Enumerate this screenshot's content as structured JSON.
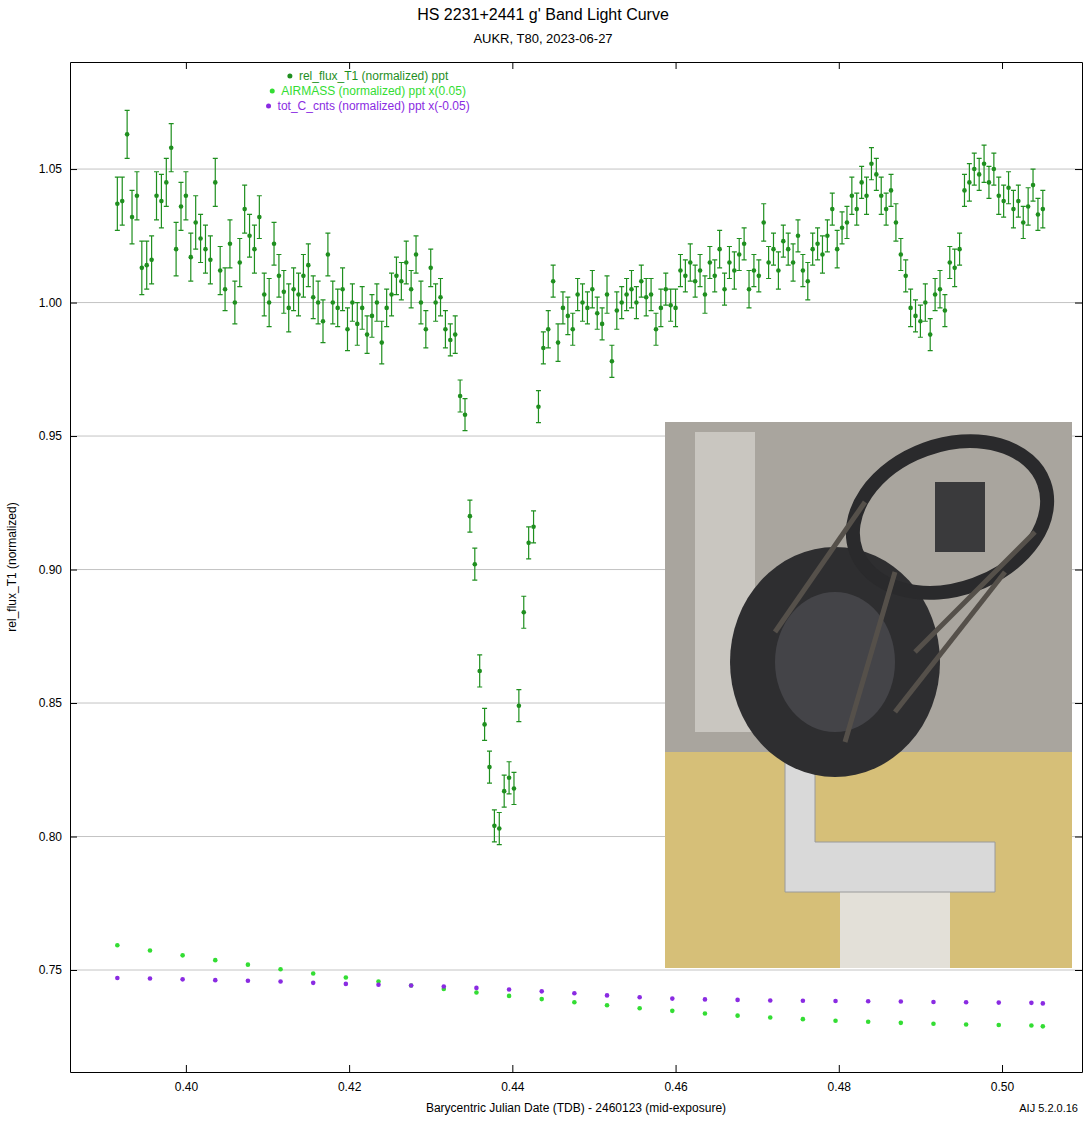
{
  "chart_data": {
    "type": "scatter",
    "title": "HS 2231+2441 g' Band Light Curve",
    "subtitle": "AUKR, T80, 2023-06-27",
    "x_label": "Barycentric Julian Date (TDB) - 2460123 (mid-exposure)",
    "y_label": "rel_flux_T1 (normalized)",
    "footnote": "AIJ 5.2.0.16",
    "xlim": [
      0.3858,
      0.5098
    ],
    "xticks": [
      {
        "value": 0.4,
        "label": "0.40"
      },
      0.42,
      0.44,
      0.46,
      0.48,
      {
        "value": 0.5,
        "label": "0.50"
      }
    ],
    "ylim": [
      0.7118,
      1.0901
    ],
    "yticks": [
      0.75,
      {
        "value": 0.8,
        "label": "0.80"
      },
      0.85,
      {
        "value": 0.9,
        "label": "0.90"
      },
      0.95,
      {
        "value": 1.0,
        "label": "1.00"
      },
      1.05
    ],
    "grid": "y",
    "legend": "top",
    "series": [
      {
        "name": "rel_flux_T1 (normalized) ppt",
        "color": "#1f8f1f",
        "marker": "circle",
        "line_style": "none",
        "x": [
          0.3916,
          0.3922,
          0.3928,
          0.3934,
          0.394,
          0.3946,
          0.3952,
          0.3958,
          0.3964,
          0.397,
          0.3976,
          0.3982,
          0.3988,
          0.3994,
          0.4,
          0.4006,
          0.4012,
          0.4018,
          0.4024,
          0.403,
          0.4036,
          0.4042,
          0.4048,
          0.4054,
          0.406,
          0.4066,
          0.4072,
          0.4078,
          0.4084,
          0.409,
          0.4096,
          0.4102,
          0.4108,
          0.4114,
          0.412,
          0.4126,
          0.4132,
          0.4138,
          0.4144,
          0.415,
          0.4156,
          0.4162,
          0.4168,
          0.4174,
          0.418,
          0.4186,
          0.4192,
          0.4198,
          0.4204,
          0.421,
          0.4216,
          0.4222,
          0.4228,
          0.4234,
          0.424,
          0.4246,
          0.4252,
          0.4258,
          0.4264,
          0.427,
          0.4276,
          0.4282,
          0.4288,
          0.4294,
          0.43,
          0.4306,
          0.4312,
          0.4318,
          0.4324,
          0.433,
          0.4336,
          0.4342,
          0.4348,
          0.4354,
          0.436,
          0.4366,
          0.4372,
          0.4378,
          0.4384,
          0.439,
          0.4396,
          0.4402,
          0.4408,
          0.4414,
          0.442,
          0.4426,
          0.4432,
          0.4438,
          0.4444,
          0.445,
          0.4456,
          0.4462,
          0.4468,
          0.4474,
          0.448,
          0.4486,
          0.4492,
          0.4498,
          0.4504,
          0.451,
          0.4516,
          0.4522,
          0.4528,
          0.4534,
          0.454,
          0.4546,
          0.4552,
          0.4558,
          0.4564,
          0.457,
          0.4576,
          0.4582,
          0.4588,
          0.4594,
          0.46,
          0.4606,
          0.4612,
          0.4618,
          0.4624,
          0.463,
          0.4636,
          0.4642,
          0.4648,
          0.4654,
          0.466,
          0.4666,
          0.4672,
          0.4678,
          0.4684,
          0.469,
          0.4696,
          0.4702,
          0.4708,
          0.4714,
          0.472,
          0.4726,
          0.4732,
          0.4738,
          0.4744,
          0.475,
          0.4756,
          0.4762,
          0.4768,
          0.4774,
          0.478,
          0.4786,
          0.4792,
          0.4798,
          0.4804,
          0.481,
          0.4816,
          0.4822,
          0.4828,
          0.4834,
          0.484,
          0.4846,
          0.4852,
          0.4858,
          0.4864,
          0.487,
          0.4876,
          0.4882,
          0.4888,
          0.4894,
          0.49,
          0.4906,
          0.4912,
          0.4918,
          0.4924,
          0.493,
          0.4936,
          0.4942,
          0.4948,
          0.4954,
          0.496,
          0.4966,
          0.4972,
          0.4978,
          0.4984,
          0.499,
          0.4996,
          0.5002,
          0.5008,
          0.5014,
          0.502,
          0.5026,
          0.5032,
          0.5038,
          0.5044,
          0.505
        ],
        "values": [
          1.037,
          1.038,
          1.063,
          1.032,
          1.04,
          1.013,
          1.014,
          1.016,
          1.04,
          1.038,
          1.045,
          1.058,
          1.02,
          1.036,
          1.04,
          1.017,
          1.03,
          1.024,
          1.02,
          1.016,
          1.045,
          1.012,
          1.005,
          1.022,
          1.0,
          1.015,
          1.035,
          1.025,
          1.02,
          1.032,
          1.003,
          1.0,
          1.022,
          1.01,
          1.004,
          0.998,
          1.005,
          1.003,
          1.01,
          1.014,
          1.002,
          1.0,
          0.993,
          1.018,
          1.0,
          0.998,
          1.005,
          0.99,
          1.0,
          0.992,
          0.998,
          0.988,
          0.995,
          1.0,
          0.985,
          0.998,
          1.003,
          1.01,
          1.008,
          1.015,
          1.005,
          1.018,
          1.0,
          0.99,
          1.013,
          1.0,
          1.002,
          0.99,
          0.986,
          0.988,
          0.965,
          0.958,
          0.92,
          0.902,
          0.862,
          0.842,
          0.826,
          0.804,
          0.803,
          0.817,
          0.822,
          0.818,
          0.849,
          0.884,
          0.91,
          0.916,
          0.961,
          0.983,
          0.99,
          1.008,
          0.985,
          0.998,
          0.995,
          0.99,
          1.003,
          1.0,
          0.998,
          1.005,
          0.996,
          0.992,
          1.003,
          0.978,
          0.997,
          1.0,
          1.003,
          1.005,
          1.0,
          1.008,
          1.002,
          1.003,
          0.99,
          0.998,
          1.005,
          0.999,
          0.998,
          1.012,
          1.01,
          1.015,
          1.008,
          1.012,
          1.003,
          1.015,
          1.01,
          1.02,
          1.005,
          1.015,
          1.012,
          1.018,
          1.022,
          1.005,
          1.012,
          1.01,
          1.03,
          1.015,
          1.02,
          1.012,
          1.023,
          1.02,
          1.015,
          1.025,
          1.012,
          1.008,
          1.02,
          1.022,
          1.018,
          1.025,
          1.035,
          1.02,
          1.028,
          1.03,
          1.04,
          1.035,
          1.045,
          1.04,
          1.052,
          1.048,
          1.04,
          1.035,
          1.042,
          1.03,
          1.018,
          1.01,
          0.998,
          0.995,
          0.993,
          1.0,
          0.988,
          1.003,
          1.005,
          0.997,
          1.015,
          1.013,
          1.02,
          1.042,
          1.045,
          1.05,
          1.048,
          1.052,
          1.045,
          1.05,
          1.04,
          1.038,
          1.043,
          1.035,
          1.038,
          1.03,
          1.036,
          1.044,
          1.033,
          1.035
        ],
        "errors": [
          0.01,
          0.009,
          0.009,
          0.01,
          0.009,
          0.01,
          0.009,
          0.009,
          0.009,
          0.01,
          0.009,
          0.009,
          0.01,
          0.009,
          0.009,
          0.009,
          0.01,
          0.009,
          0.009,
          0.009,
          0.009,
          0.009,
          0.008,
          0.009,
          0.008,
          0.009,
          0.009,
          0.008,
          0.009,
          0.008,
          0.008,
          0.009,
          0.008,
          0.008,
          0.008,
          0.009,
          0.008,
          0.008,
          0.008,
          0.008,
          0.008,
          0.008,
          0.008,
          0.008,
          0.008,
          0.007,
          0.008,
          0.008,
          0.007,
          0.008,
          0.008,
          0.007,
          0.008,
          0.007,
          0.008,
          0.007,
          0.008,
          0.007,
          0.007,
          0.008,
          0.007,
          0.007,
          0.008,
          0.007,
          0.007,
          0.007,
          0.007,
          0.007,
          0.006,
          0.007,
          0.006,
          0.006,
          0.006,
          0.006,
          0.006,
          0.006,
          0.006,
          0.006,
          0.006,
          0.006,
          0.006,
          0.006,
          0.006,
          0.006,
          0.006,
          0.006,
          0.006,
          0.006,
          0.007,
          0.006,
          0.007,
          0.006,
          0.007,
          0.006,
          0.006,
          0.007,
          0.006,
          0.007,
          0.006,
          0.006,
          0.007,
          0.006,
          0.007,
          0.006,
          0.006,
          0.007,
          0.006,
          0.006,
          0.007,
          0.006,
          0.006,
          0.007,
          0.006,
          0.006,
          0.007,
          0.006,
          0.006,
          0.007,
          0.006,
          0.006,
          0.007,
          0.006,
          0.006,
          0.007,
          0.006,
          0.006,
          0.007,
          0.006,
          0.006,
          0.007,
          0.006,
          0.006,
          0.007,
          0.006,
          0.006,
          0.007,
          0.006,
          0.006,
          0.007,
          0.006,
          0.006,
          0.007,
          0.006,
          0.006,
          0.007,
          0.006,
          0.006,
          0.007,
          0.006,
          0.006,
          0.007,
          0.006,
          0.006,
          0.007,
          0.006,
          0.006,
          0.007,
          0.006,
          0.006,
          0.007,
          0.006,
          0.006,
          0.007,
          0.006,
          0.006,
          0.007,
          0.006,
          0.006,
          0.007,
          0.006,
          0.006,
          0.007,
          0.006,
          0.006,
          0.007,
          0.006,
          0.006,
          0.007,
          0.006,
          0.006,
          0.007,
          0.006,
          0.006,
          0.007,
          0.006,
          0.006,
          0.007,
          0.006,
          0.006,
          0.007
        ]
      },
      {
        "name": "AIRMASS (normalized) ppt x(0.05)",
        "color": "#33dd33",
        "marker": "circle",
        "line_style": "none",
        "x": [
          0.3916,
          0.3956,
          0.3996,
          0.4036,
          0.4076,
          0.4116,
          0.4156,
          0.4196,
          0.4236,
          0.4276,
          0.4316,
          0.4356,
          0.4396,
          0.4436,
          0.4476,
          0.4516,
          0.4556,
          0.4596,
          0.4636,
          0.4676,
          0.4716,
          0.4756,
          0.4796,
          0.4836,
          0.4876,
          0.4916,
          0.4956,
          0.4996,
          0.5036,
          0.505
        ],
        "values": [
          0.7593,
          0.7573,
          0.7555,
          0.7537,
          0.752,
          0.7503,
          0.7487,
          0.7472,
          0.7457,
          0.7442,
          0.7429,
          0.7416,
          0.7403,
          0.7391,
          0.7379,
          0.7368,
          0.7357,
          0.7347,
          0.7337,
          0.7329,
          0.7322,
          0.7316,
          0.731,
          0.7306,
          0.7302,
          0.7299,
          0.7296,
          0.7294,
          0.7292,
          0.7289
        ]
      },
      {
        "name": "tot_C_cnts (normalized) ppt x(-0.05)",
        "color": "#8a2be2",
        "marker": "circle",
        "line_style": "none",
        "x": [
          0.3916,
          0.3956,
          0.3996,
          0.4036,
          0.4076,
          0.4116,
          0.4156,
          0.4196,
          0.4236,
          0.4276,
          0.4316,
          0.4356,
          0.4396,
          0.4436,
          0.4476,
          0.4516,
          0.4556,
          0.4596,
          0.4636,
          0.4676,
          0.4716,
          0.4756,
          0.4796,
          0.4836,
          0.4876,
          0.4916,
          0.4956,
          0.4996,
          0.5036,
          0.505
        ],
        "values": [
          0.747,
          0.7468,
          0.7465,
          0.7462,
          0.746,
          0.7457,
          0.7452,
          0.7448,
          0.7445,
          0.7442,
          0.7438,
          0.7433,
          0.7427,
          0.742,
          0.7413,
          0.7405,
          0.7398,
          0.7393,
          0.739,
          0.7388,
          0.7386,
          0.7385,
          0.7384,
          0.7383,
          0.7382,
          0.738,
          0.7379,
          0.7378,
          0.7377,
          0.7375
        ]
      }
    ]
  }
}
